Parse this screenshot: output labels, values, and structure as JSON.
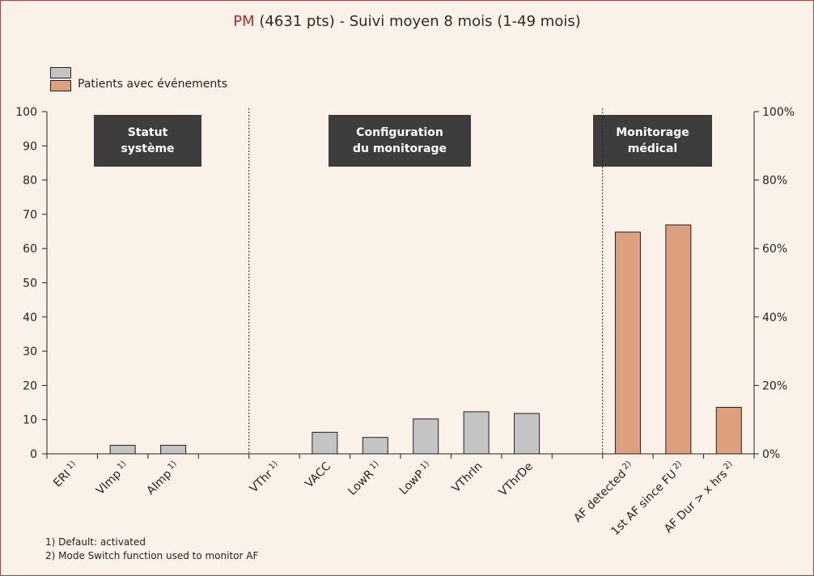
{
  "title": {
    "prefix": "PM",
    "rest": " (4631 pts) - Suivi moyen 8 mois (1-49 mois)"
  },
  "legend": {
    "gray_label": "",
    "salmon_label": "Patients avec événements"
  },
  "sections": [
    {
      "line1": "Statut",
      "line2": "système"
    },
    {
      "line1": "Configuration",
      "line2": "du monitorage"
    },
    {
      "line1": "Monitorage",
      "line2": "médical"
    }
  ],
  "footnotes": [
    "1) Default: activated",
    "2) Mode Switch function used to monitor AF"
  ],
  "colors": {
    "gray_bar": "#c4c4c4",
    "salmon_bar": "#dda07e",
    "title_accent": "#b52a26",
    "section_box": "#3d3d3d",
    "background": "#faf1e9"
  },
  "chart_data": {
    "type": "bar",
    "ylim": [
      0,
      100
    ],
    "yticks": [
      "0",
      "10",
      "20",
      "30",
      "40",
      "50",
      "60",
      "70",
      "80",
      "90",
      "100"
    ],
    "y2ticks": [
      "0%",
      "20%",
      "40%",
      "60%",
      "80%",
      "100%"
    ],
    "categories": [
      {
        "label": "ERI",
        "sup": "1)",
        "value": 0,
        "series": "gray"
      },
      {
        "label": "VImp",
        "sup": "1)",
        "value": 2.5,
        "series": "gray"
      },
      {
        "label": "AImp",
        "sup": "1)",
        "value": 2.5,
        "series": "gray"
      },
      {
        "label": "",
        "sup": "",
        "value": 0,
        "series": "gray"
      },
      {
        "label": "VThr",
        "sup": "1)",
        "value": 0,
        "series": "gray"
      },
      {
        "label": "VACC",
        "sup": "",
        "value": 6.3,
        "series": "gray"
      },
      {
        "label": "LowR",
        "sup": "1)",
        "value": 4.8,
        "series": "gray"
      },
      {
        "label": "LowP",
        "sup": "1)",
        "value": 10.2,
        "series": "gray"
      },
      {
        "label": "VThrIn",
        "sup": "",
        "value": 12.3,
        "series": "gray"
      },
      {
        "label": "VThrDe",
        "sup": "",
        "value": 11.8,
        "series": "gray"
      },
      {
        "label": "",
        "sup": "",
        "value": 0,
        "series": "gray"
      },
      {
        "label": "AF detected",
        "sup": "2)",
        "value": 64.8,
        "series": "salmon"
      },
      {
        "label": "1st AF since FU",
        "sup": "2)",
        "value": 66.9,
        "series": "salmon"
      },
      {
        "label": "AF Dur > x hrs",
        "sup": "2)",
        "value": 13.6,
        "series": "salmon"
      }
    ]
  }
}
